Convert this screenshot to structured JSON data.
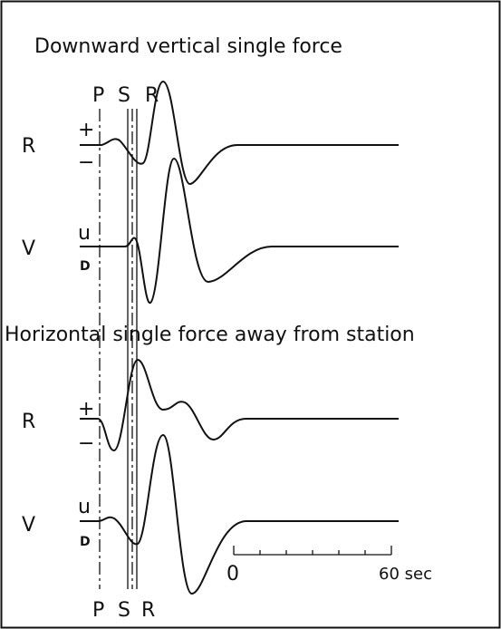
{
  "panels": [
    {
      "title": "Downward vertical single force",
      "phases": [
        "P",
        "S",
        "R"
      ],
      "traces": [
        {
          "component": "R",
          "upper": "+",
          "lower": "−"
        },
        {
          "component": "V",
          "upper": "u",
          "lower": "D"
        }
      ]
    },
    {
      "title": "Horizontal single force away from station",
      "phases": [
        "P",
        "S",
        "R"
      ],
      "traces": [
        {
          "component": "R",
          "upper": "+",
          "lower": "−"
        },
        {
          "component": "V",
          "upper": "u",
          "lower": "D"
        }
      ]
    }
  ],
  "scale": {
    "start": "0",
    "end": "60 sec"
  }
}
